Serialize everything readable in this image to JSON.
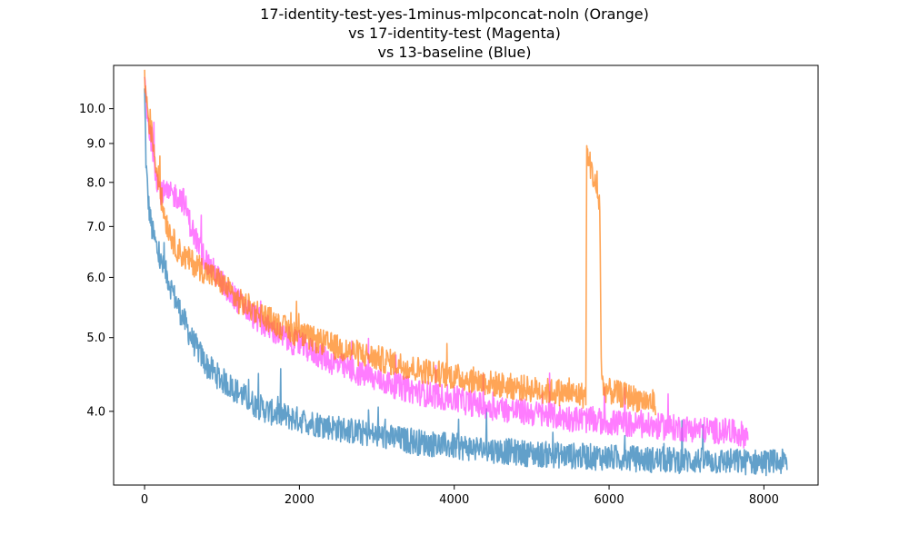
{
  "chart_data": {
    "type": "line",
    "title_lines": [
      "17-identity-test-yes-1minus-mlpconcat-noln (Orange)",
      "vs 17-identity-test (Magenta)",
      "vs 13-baseline (Blue)"
    ],
    "xlabel": "",
    "ylabel": "",
    "y_scale": "log",
    "xlim": [
      -400,
      8700
    ],
    "ylim": [
      3.2,
      11.4
    ],
    "x_ticks": [
      0,
      2000,
      4000,
      6000,
      8000
    ],
    "x_tick_labels": [
      "0",
      "2000",
      "4000",
      "6000",
      "8000"
    ],
    "y_ticks": [
      4.0,
      5.0,
      6.0,
      7.0,
      8.0,
      9.0,
      10.0
    ],
    "y_tick_labels": [
      "4.0",
      "5.0",
      "6.0",
      "7.0",
      "8.0",
      "9.0",
      "10.0"
    ],
    "grid": false,
    "series": [
      {
        "name": "13-baseline (Blue)",
        "color": "#1f77b4",
        "x": [
          0,
          20,
          50,
          80,
          100,
          150,
          200,
          300,
          400,
          500,
          600,
          700,
          800,
          900,
          1000,
          1200,
          1400,
          1600,
          1800,
          2000,
          2500,
          3000,
          3500,
          4000,
          4500,
          5000,
          5500,
          6000,
          6500,
          7000,
          7500,
          8000,
          8300
        ],
        "y": [
          10.5,
          8.4,
          7.5,
          7.1,
          6.9,
          6.6,
          6.3,
          6.0,
          5.6,
          5.3,
          5.0,
          4.8,
          4.6,
          4.5,
          4.4,
          4.25,
          4.1,
          4.0,
          3.95,
          3.9,
          3.8,
          3.72,
          3.65,
          3.6,
          3.56,
          3.52,
          3.5,
          3.48,
          3.46,
          3.45,
          3.44,
          3.43,
          3.43
        ]
      },
      {
        "name": "17-identity-test (Magenta)",
        "color": "#ff44ff",
        "x": [
          0,
          30,
          60,
          100,
          150,
          200,
          300,
          400,
          500,
          550,
          600,
          650,
          700,
          800,
          900,
          1000,
          1200,
          1400,
          1600,
          1800,
          2000,
          2500,
          3000,
          3500,
          4000,
          4500,
          5000,
          5500,
          6000,
          6500,
          7000,
          7500,
          7800
        ],
        "y": [
          10.9,
          10.0,
          9.4,
          9.0,
          8.2,
          7.8,
          7.7,
          7.7,
          7.6,
          7.3,
          7.0,
          6.8,
          6.6,
          6.3,
          6.1,
          5.9,
          5.6,
          5.35,
          5.15,
          5.0,
          4.9,
          4.6,
          4.4,
          4.25,
          4.15,
          4.05,
          3.98,
          3.92,
          3.87,
          3.83,
          3.8,
          3.77,
          3.72
        ]
      },
      {
        "name": "17-identity-test-yes-1minus-mlpconcat-noln (Orange)",
        "color": "#ff7f0e",
        "x": [
          0,
          30,
          60,
          100,
          150,
          200,
          250,
          300,
          400,
          500,
          600,
          700,
          800,
          1000,
          1200,
          1400,
          1600,
          1800,
          2000,
          2500,
          3000,
          3500,
          4000,
          4500,
          5000,
          5500,
          5700,
          5710,
          5750,
          5800,
          5850,
          5880,
          5900,
          5920,
          6000,
          6200,
          6400,
          6600
        ],
        "y": [
          10.9,
          10.2,
          9.6,
          9.2,
          8.4,
          7.8,
          7.3,
          7.0,
          6.6,
          6.4,
          6.3,
          6.2,
          6.1,
          5.9,
          5.6,
          5.45,
          5.3,
          5.15,
          5.05,
          4.85,
          4.7,
          4.55,
          4.45,
          4.35,
          4.28,
          4.22,
          4.2,
          8.7,
          8.5,
          8.1,
          7.7,
          7.5,
          4.5,
          4.3,
          4.25,
          4.2,
          4.15,
          4.1
        ]
      }
    ]
  }
}
